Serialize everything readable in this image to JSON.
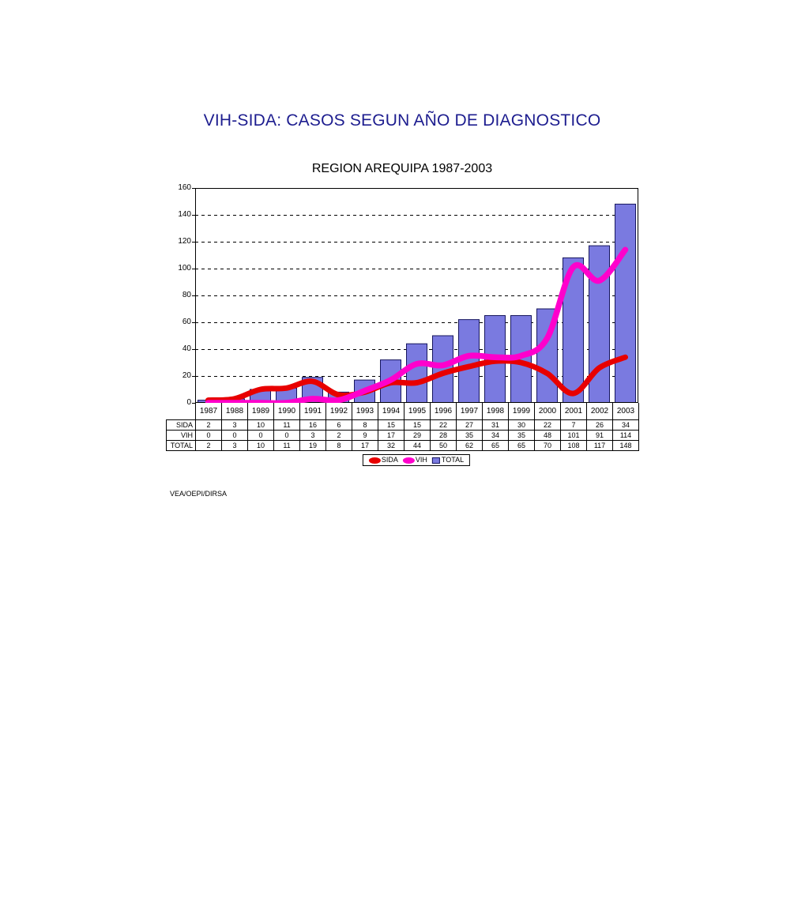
{
  "page": {
    "title": "VIH-SIDA: CASOS SEGUN AÑO DE DIAGNOSTICO",
    "subtitle": "REGION AREQUIPA 1987-2003",
    "source": "VEA/OEPI/DIRSA"
  },
  "chart_data": {
    "type": "bar+line",
    "title": "REGION AREQUIPA 1987-2003",
    "categories": [
      "1987",
      "1988",
      "1989",
      "1990",
      "1991",
      "1992",
      "1993",
      "1994",
      "1995",
      "1996",
      "1997",
      "1998",
      "1999",
      "2000",
      "2001",
      "2002",
      "2003"
    ],
    "series": [
      {
        "name": "SIDA",
        "type": "line",
        "color": "#e80000",
        "stroke_width": 7,
        "values": [
          2,
          3,
          10,
          11,
          16,
          6,
          8,
          15,
          15,
          22,
          27,
          31,
          30,
          22,
          7,
          26,
          34
        ]
      },
      {
        "name": "VIH",
        "type": "line",
        "color": "#ff00cc",
        "stroke_width": 7.5,
        "values": [
          0,
          0,
          0,
          0,
          3,
          2,
          9,
          17,
          29,
          28,
          35,
          34,
          35,
          48,
          101,
          91,
          114
        ]
      },
      {
        "name": "TOTAL",
        "type": "bar",
        "color": "#7a7ae0",
        "border_color": "#16165e",
        "values": [
          2,
          3,
          10,
          11,
          19,
          8,
          17,
          32,
          44,
          50,
          62,
          65,
          65,
          70,
          108,
          117,
          148
        ]
      }
    ],
    "xlabel": "",
    "ylabel": "",
    "ylim": [
      0,
      160
    ],
    "ytick_step": 20,
    "grid": "horizontal-dashed",
    "grid_color": "#000000",
    "legend_position": "bottom",
    "title_color": "#1d1d8f",
    "plot_border_color": "#000000"
  }
}
